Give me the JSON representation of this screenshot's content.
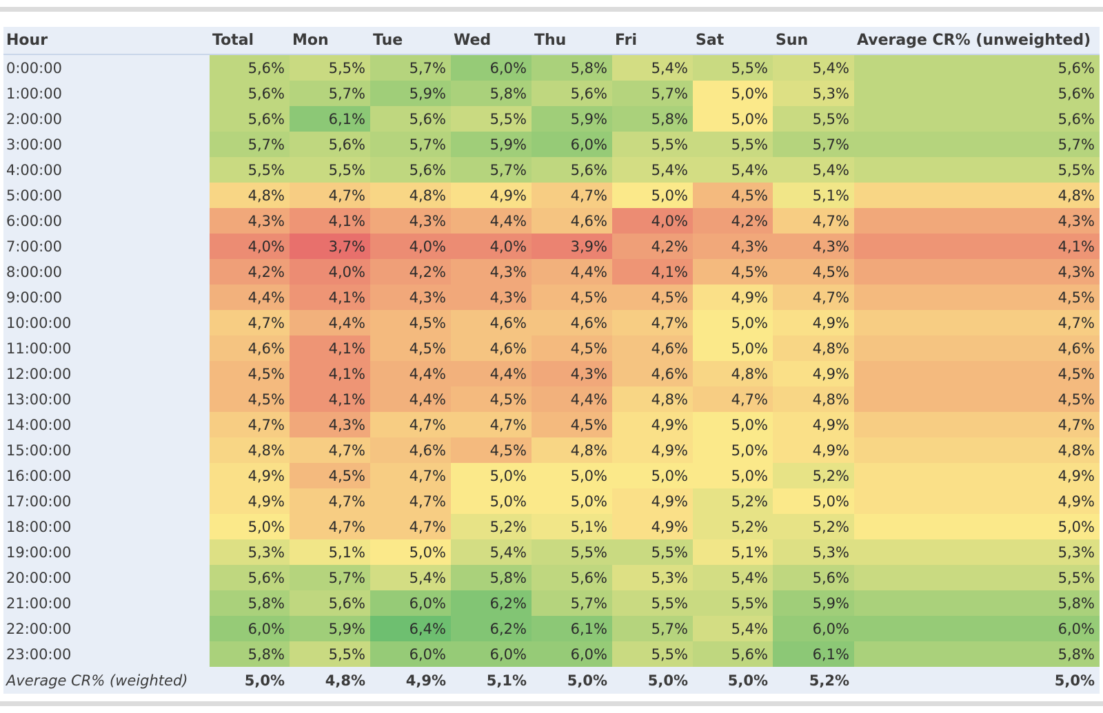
{
  "chart_data": {
    "type": "heatmap",
    "header": {
      "row_label": "Hour",
      "columns": [
        "Total",
        "Mon",
        "Tue",
        "Wed",
        "Thu",
        "Fri",
        "Sat",
        "Sun",
        "Average CR% (unweighted)"
      ]
    },
    "rows": [
      {
        "hour": "0:00:00",
        "values": [
          "5,6%",
          "5,5%",
          "5,7%",
          "6,0%",
          "5,8%",
          "5,4%",
          "5,5%",
          "5,4%",
          "5,6%"
        ]
      },
      {
        "hour": "1:00:00",
        "values": [
          "5,6%",
          "5,7%",
          "5,9%",
          "5,8%",
          "5,6%",
          "5,7%",
          "5,0%",
          "5,3%",
          "5,6%"
        ]
      },
      {
        "hour": "2:00:00",
        "values": [
          "5,6%",
          "6,1%",
          "5,6%",
          "5,5%",
          "5,9%",
          "5,8%",
          "5,0%",
          "5,5%",
          "5,6%"
        ]
      },
      {
        "hour": "3:00:00",
        "values": [
          "5,7%",
          "5,6%",
          "5,7%",
          "5,9%",
          "6,0%",
          "5,5%",
          "5,5%",
          "5,7%",
          "5,7%"
        ]
      },
      {
        "hour": "4:00:00",
        "values": [
          "5,5%",
          "5,5%",
          "5,6%",
          "5,7%",
          "5,6%",
          "5,4%",
          "5,4%",
          "5,4%",
          "5,5%"
        ]
      },
      {
        "hour": "5:00:00",
        "values": [
          "4,8%",
          "4,7%",
          "4,8%",
          "4,9%",
          "4,7%",
          "5,0%",
          "4,5%",
          "5,1%",
          "4,8%"
        ]
      },
      {
        "hour": "6:00:00",
        "values": [
          "4,3%",
          "4,1%",
          "4,3%",
          "4,4%",
          "4,6%",
          "4,0%",
          "4,2%",
          "4,7%",
          "4,3%"
        ]
      },
      {
        "hour": "7:00:00",
        "values": [
          "4,0%",
          "3,7%",
          "4,0%",
          "4,0%",
          "3,9%",
          "4,2%",
          "4,3%",
          "4,3%",
          "4,1%"
        ]
      },
      {
        "hour": "8:00:00",
        "values": [
          "4,2%",
          "4,0%",
          "4,2%",
          "4,3%",
          "4,4%",
          "4,1%",
          "4,5%",
          "4,5%",
          "4,3%"
        ]
      },
      {
        "hour": "9:00:00",
        "values": [
          "4,4%",
          "4,1%",
          "4,3%",
          "4,3%",
          "4,5%",
          "4,5%",
          "4,9%",
          "4,7%",
          "4,5%"
        ]
      },
      {
        "hour": "10:00:00",
        "values": [
          "4,7%",
          "4,4%",
          "4,5%",
          "4,6%",
          "4,6%",
          "4,7%",
          "5,0%",
          "4,9%",
          "4,7%"
        ]
      },
      {
        "hour": "11:00:00",
        "values": [
          "4,6%",
          "4,1%",
          "4,5%",
          "4,6%",
          "4,5%",
          "4,6%",
          "5,0%",
          "4,8%",
          "4,6%"
        ]
      },
      {
        "hour": "12:00:00",
        "values": [
          "4,5%",
          "4,1%",
          "4,4%",
          "4,4%",
          "4,3%",
          "4,6%",
          "4,8%",
          "4,9%",
          "4,5%"
        ]
      },
      {
        "hour": "13:00:00",
        "values": [
          "4,5%",
          "4,1%",
          "4,4%",
          "4,5%",
          "4,4%",
          "4,8%",
          "4,7%",
          "4,8%",
          "4,5%"
        ]
      },
      {
        "hour": "14:00:00",
        "values": [
          "4,7%",
          "4,3%",
          "4,7%",
          "4,7%",
          "4,5%",
          "4,9%",
          "5,0%",
          "4,9%",
          "4,7%"
        ]
      },
      {
        "hour": "15:00:00",
        "values": [
          "4,8%",
          "4,7%",
          "4,6%",
          "4,5%",
          "4,8%",
          "4,9%",
          "5,0%",
          "4,9%",
          "4,8%"
        ]
      },
      {
        "hour": "16:00:00",
        "values": [
          "4,9%",
          "4,5%",
          "4,7%",
          "5,0%",
          "5,0%",
          "5,0%",
          "5,0%",
          "5,2%",
          "4,9%"
        ]
      },
      {
        "hour": "17:00:00",
        "values": [
          "4,9%",
          "4,7%",
          "4,7%",
          "5,0%",
          "5,0%",
          "4,9%",
          "5,2%",
          "5,0%",
          "4,9%"
        ]
      },
      {
        "hour": "18:00:00",
        "values": [
          "5,0%",
          "4,7%",
          "4,7%",
          "5,2%",
          "5,1%",
          "4,9%",
          "5,2%",
          "5,2%",
          "5,0%"
        ]
      },
      {
        "hour": "19:00:00",
        "values": [
          "5,3%",
          "5,1%",
          "5,0%",
          "5,4%",
          "5,5%",
          "5,5%",
          "5,1%",
          "5,3%",
          "5,3%"
        ]
      },
      {
        "hour": "20:00:00",
        "values": [
          "5,6%",
          "5,7%",
          "5,4%",
          "5,8%",
          "5,6%",
          "5,3%",
          "5,4%",
          "5,6%",
          "5,5%"
        ]
      },
      {
        "hour": "21:00:00",
        "values": [
          "5,8%",
          "5,6%",
          "6,0%",
          "6,2%",
          "5,7%",
          "5,5%",
          "5,5%",
          "5,9%",
          "5,8%"
        ]
      },
      {
        "hour": "22:00:00",
        "values": [
          "6,0%",
          "5,9%",
          "6,4%",
          "6,2%",
          "6,1%",
          "5,7%",
          "5,4%",
          "6,0%",
          "6,0%"
        ]
      },
      {
        "hour": "23:00:00",
        "values": [
          "5,8%",
          "5,5%",
          "6,0%",
          "6,0%",
          "6,0%",
          "5,5%",
          "5,6%",
          "6,1%",
          "5,8%"
        ]
      }
    ],
    "footer": {
      "label": "Average CR% (weighted)",
      "values": [
        "5,0%",
        "4,8%",
        "4,9%",
        "5,1%",
        "5,0%",
        "5,0%",
        "5,0%",
        "5,2%",
        "5,0%"
      ]
    },
    "color_scale": {
      "min_value": 3.7,
      "mid_value": 5.0,
      "max_value": 6.4,
      "low_color": "#e8706c",
      "mid_color": "#fbe98a",
      "high_color": "#6ebf70"
    }
  }
}
